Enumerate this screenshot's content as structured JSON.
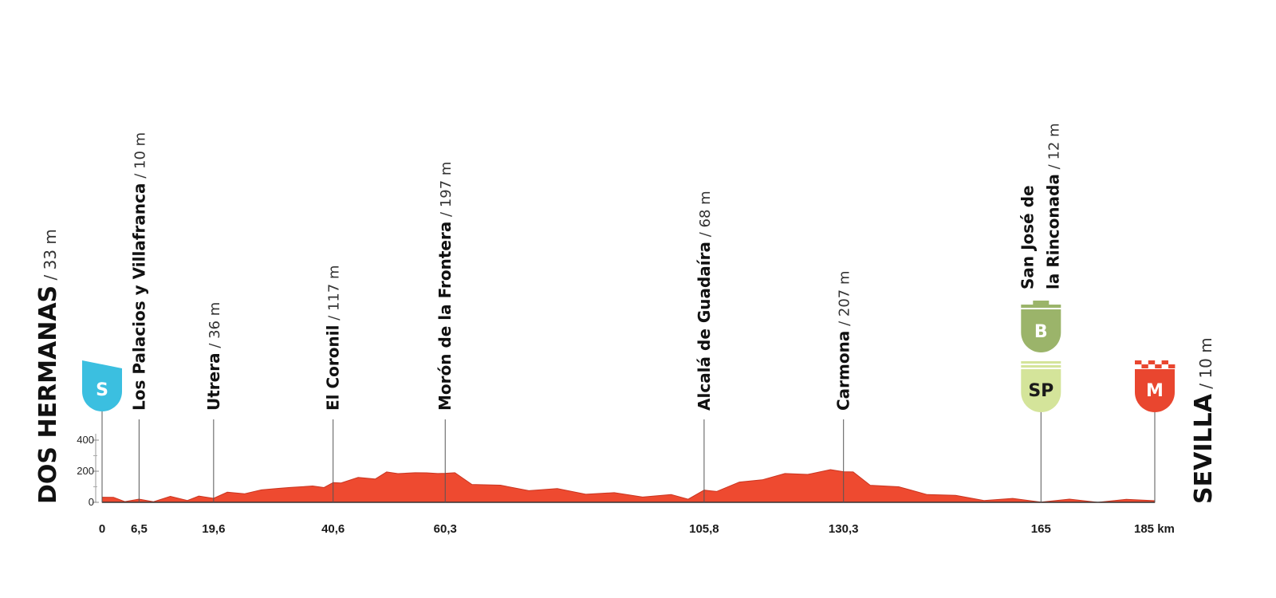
{
  "chart_data": {
    "type": "area",
    "start": {
      "name": "DOS HERMANAS",
      "altitude": "/ 33 m",
      "km": 0
    },
    "finish": {
      "name": "SEVILLA",
      "altitude": "/ 10 m",
      "km": 185
    },
    "waypoints": [
      {
        "km": 6.5,
        "km_label": "6,5",
        "lines": [
          "Los Palacios y Villafranca"
        ],
        "altitude": "/ 10 m"
      },
      {
        "km": 19.6,
        "km_label": "19,6",
        "lines": [
          "Utrera"
        ],
        "altitude": "/ 36 m"
      },
      {
        "km": 40.6,
        "km_label": "40,6",
        "lines": [
          "El Coronil"
        ],
        "altitude": "/ 117 m"
      },
      {
        "km": 60.3,
        "km_label": "60,3",
        "lines": [
          "Morón de la Frontera"
        ],
        "altitude": "/ 197 m"
      },
      {
        "km": 105.8,
        "km_label": "105,8",
        "lines": [
          "Alcalá de Guadaíra"
        ],
        "altitude": "/ 68 m"
      },
      {
        "km": 130.3,
        "km_label": "130,3",
        "lines": [
          "Carmona"
        ],
        "altitude": "/ 207 m"
      },
      {
        "km": 165,
        "km_label": "165",
        "lines": [
          "San José de",
          "la Rinconada"
        ],
        "altitude": "/ 12 m"
      }
    ],
    "x_ticks": [
      {
        "km": 0,
        "label": "0"
      },
      {
        "km": 185,
        "label": "185 km"
      }
    ],
    "y_ticks": [
      {
        "value": 0,
        "label": "0"
      },
      {
        "value": 200,
        "label": "200"
      },
      {
        "value": 400,
        "label": "400"
      }
    ],
    "ylim": [
      0,
      400
    ],
    "xlim": [
      0,
      185
    ],
    "markers": [
      {
        "km": 0,
        "label": "S",
        "kind": "start",
        "color": "#3bbfe0"
      },
      {
        "km": 165,
        "label": "B",
        "kind": "bonus",
        "color": "#9bb46a"
      },
      {
        "km": 165,
        "label": "SP",
        "kind": "sprint",
        "color": "#d4e49a"
      },
      {
        "km": 185,
        "label": "M",
        "kind": "finish",
        "color": "#e9462f"
      }
    ],
    "profile_color": "#ee4a30",
    "profile": {
      "km": [
        0,
        2,
        4,
        6.5,
        9,
        12,
        15,
        17,
        19.6,
        22,
        25,
        28,
        31,
        33,
        35,
        37,
        39,
        40.6,
        42,
        45,
        48,
        50,
        52,
        55,
        57,
        59,
        60.3,
        62,
        65,
        70,
        75,
        80,
        85,
        90,
        95,
        100,
        103,
        105.8,
        108,
        112,
        116,
        120,
        124,
        128,
        130.3,
        132,
        135,
        140,
        145,
        150,
        155,
        160,
        165,
        170,
        175,
        180,
        185
      ],
      "alt": [
        33,
        22,
        15,
        10,
        14,
        28,
        22,
        30,
        36,
        55,
        65,
        70,
        100,
        85,
        110,
        95,
        105,
        117,
        135,
        150,
        160,
        185,
        195,
        180,
        200,
        175,
        197,
        180,
        125,
        100,
        85,
        78,
        62,
        52,
        44,
        40,
        30,
        68,
        80,
        120,
        155,
        175,
        190,
        200,
        207,
        185,
        120,
        90,
        60,
        35,
        22,
        15,
        12,
        10,
        10,
        9,
        10
      ]
    }
  }
}
